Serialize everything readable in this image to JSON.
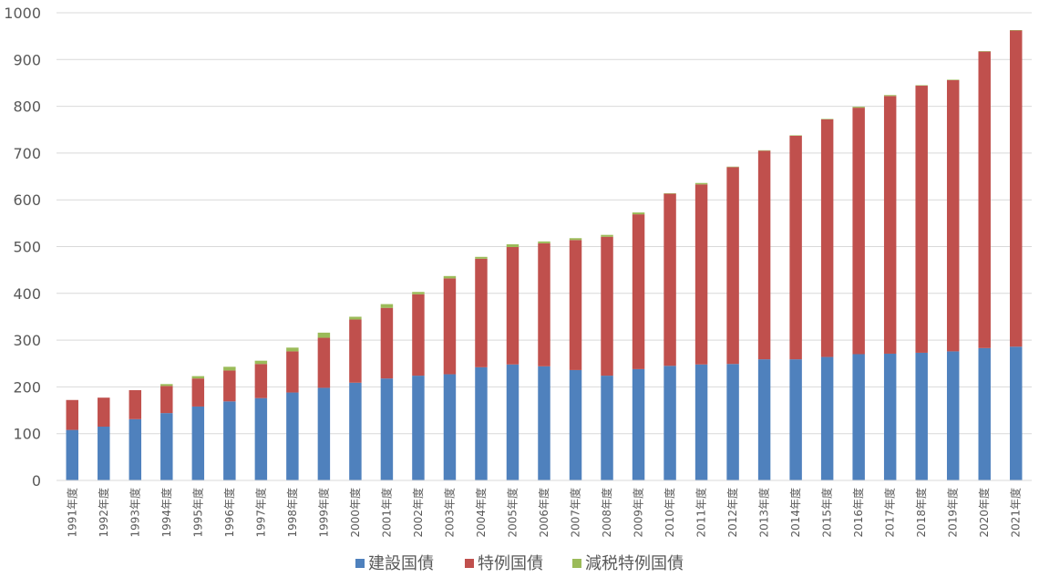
{
  "chart_data": {
    "type": "bar",
    "stacked": true,
    "title": "",
    "xlabel": "",
    "ylabel": "",
    "ylim": [
      0,
      1000
    ],
    "yticks": [
      0,
      100,
      200,
      300,
      400,
      500,
      600,
      700,
      800,
      900,
      1000
    ],
    "grid": true,
    "legend_position": "bottom",
    "categories": [
      "1991年度",
      "1992年度",
      "1993年度",
      "1994年度",
      "1995年度",
      "1996年度",
      "1997年度",
      "1998年度",
      "1999年度",
      "2000年度",
      "2001年度",
      "2002年度",
      "2003年度",
      "2004年度",
      "2005年度",
      "2006年度",
      "2007年度",
      "2008年度",
      "2009年度",
      "2010年度",
      "2011年度",
      "2012年度",
      "2013年度",
      "2014年度",
      "2015年度",
      "2016年度",
      "2017年度",
      "2018年度",
      "2019年度",
      "2020年度",
      "2021年度"
    ],
    "series": [
      {
        "name": "建設国債",
        "color": "#4f81bd",
        "values": [
          108,
          115,
          131,
          144,
          158,
          169,
          176,
          188,
          198,
          209,
          218,
          224,
          227,
          242,
          248,
          244,
          236,
          224,
          238,
          245,
          248,
          249,
          259,
          259,
          264,
          270,
          271,
          273,
          276,
          283,
          286
        ]
      },
      {
        "name": "特例国債",
        "color": "#c0504d",
        "values": [
          64,
          62,
          62,
          58,
          60,
          66,
          73,
          88,
          107,
          135,
          151,
          174,
          205,
          232,
          251,
          263,
          278,
          297,
          331,
          368,
          385,
          421,
          446,
          478,
          508,
          527,
          551,
          571,
          580,
          634,
          676
        ]
      },
      {
        "name": "減税特例国債",
        "color": "#9bbb59",
        "values": [
          0,
          0,
          0,
          4,
          5,
          8,
          7,
          8,
          11,
          6,
          8,
          5,
          5,
          4,
          6,
          4,
          4,
          4,
          4,
          1,
          3,
          1,
          1,
          1,
          1,
          2,
          2,
          1,
          1,
          1,
          1
        ]
      }
    ]
  }
}
